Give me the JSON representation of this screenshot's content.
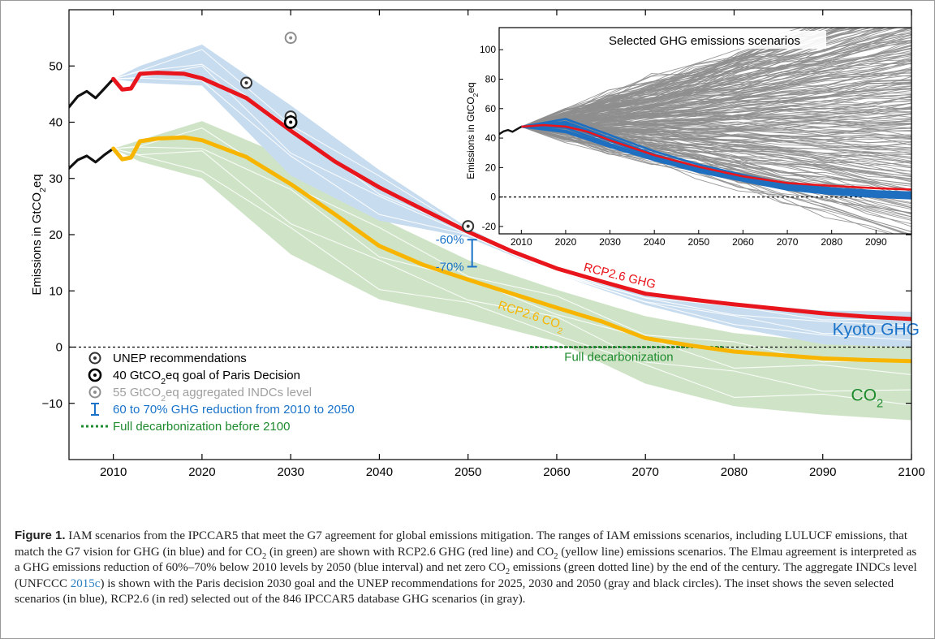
{
  "figure": {
    "caption_label": "Figure 1.",
    "caption_parts": [
      " IAM scenarios from the IPCCAR5 that meet the G7 agreement for global emissions mitigation. The ranges of IAM emissions scenarios, including LULUCF emissions, that match the G7 vision for GHG (in blue) and for CO",
      "2",
      " (in green) are shown with RCP2.6 GHG (red line) and CO",
      "2",
      " (yellow line) emissions scenarios. The Elmau agreement is interpreted as a GHG emissions reduction of 60%–70% below 2010 levels by 2050 (blue interval) and net zero CO",
      "2",
      " emissions (green dotted line) by the end of the century. The aggregate INDCs level (UNFCCC ",
      "2015c",
      ") is shown with the Paris decision 2030 goal and the UNEP recommendations for 2025, 2030 and 2050 (gray and black circles). The inset shows the seven selected scenarios (in blue), RCP2.6 (in red) selected out of the 846 IPCCAR5 database GHG scenarios (in gray)."
    ]
  },
  "colors": {
    "ghg_band": "#c7dcef",
    "co2_band": "#cfe4c7",
    "rcp26_ghg": "#e8161c",
    "rcp26_co2": "#f7b500",
    "historical": "#111111",
    "blue_text": "#1a73c9",
    "green_text": "#1e8a2e",
    "gray_text": "#a0a0a0",
    "inset_gray": "#8e8e8e",
    "inset_blue": "#1f6fc0"
  },
  "chart_data": [
    {
      "type": "line",
      "ylabel_main": "Emissions in GtCO",
      "ylabel_sub": "2",
      "ylabel_end": "eq",
      "xlim": [
        2005,
        2100
      ],
      "ylim": [
        -20,
        60
      ],
      "xticks": [
        "2010",
        "2020",
        "2030",
        "2040",
        "2050",
        "2060",
        "2070",
        "2080",
        "2090",
        "2100"
      ],
      "xtick_values": [
        2010,
        2020,
        2030,
        2040,
        2050,
        2060,
        2070,
        2080,
        2090,
        2100
      ],
      "yticks": [
        "−10",
        "0",
        "10",
        "20",
        "30",
        "40",
        "50"
      ],
      "ytick_values": [
        -10,
        0,
        10,
        20,
        30,
        40,
        50
      ],
      "series": [
        {
          "name": "RCP2.6 GHG",
          "x": [
            2010,
            2011,
            2012,
            2013,
            2015,
            2018,
            2020,
            2025,
            2030,
            2035,
            2040,
            2045,
            2050,
            2055,
            2060,
            2065,
            2070,
            2075,
            2080,
            2085,
            2090,
            2095,
            2100
          ],
          "y": [
            47.7,
            45.8,
            46.0,
            48.6,
            48.8,
            48.6,
            47.8,
            44.3,
            38.5,
            33.0,
            28.4,
            24.4,
            20.5,
            17.0,
            14.0,
            11.7,
            9.5,
            8.5,
            7.6,
            6.8,
            6.0,
            5.4,
            5.0
          ],
          "label_x": 2067,
          "label_y": 12.0
        },
        {
          "name": "RCP2.6 CO2",
          "label_base": "RCP2.6 CO",
          "label_sub": "2",
          "x": [
            2010,
            2011,
            2012,
            2013,
            2015,
            2018,
            2020,
            2025,
            2030,
            2035,
            2040,
            2045,
            2050,
            2055,
            2060,
            2065,
            2070,
            2075,
            2080,
            2085,
            2090,
            2095,
            2100
          ],
          "y": [
            35.3,
            33.4,
            33.7,
            36.6,
            37.1,
            37.3,
            36.8,
            33.8,
            29.0,
            23.6,
            18.0,
            14.6,
            12.0,
            9.5,
            7.0,
            4.6,
            1.6,
            0.3,
            -0.8,
            -1.4,
            -2.0,
            -2.3,
            -2.5
          ],
          "label_x": 2057,
          "label_y": 5.0
        }
      ],
      "historical": [
        {
          "x": [
            2005,
            2006,
            2007,
            2008,
            2009,
            2010
          ],
          "y": [
            42.7,
            44.6,
            45.5,
            44.3,
            46.0,
            47.7
          ]
        },
        {
          "x": [
            2005,
            2006,
            2007,
            2008,
            2009,
            2010
          ],
          "y": [
            31.8,
            33.3,
            34.0,
            32.9,
            34.2,
            35.3
          ]
        }
      ],
      "ghg_band": {
        "x": [
          2010,
          2013,
          2020,
          2030,
          2040,
          2050,
          2060,
          2070,
          2080,
          2090,
          2100
        ],
        "upper": [
          47.7,
          50,
          53.8,
          43,
          31.5,
          21.2,
          13.2,
          9.3,
          7.8,
          6.5,
          6.3
        ],
        "lower": [
          47.7,
          47,
          46.5,
          30.5,
          22.5,
          19.5,
          13,
          7.5,
          3.5,
          0.5,
          0
        ]
      },
      "co2_band": {
        "x": [
          2010,
          2013,
          2020,
          2030,
          2040,
          2050,
          2060,
          2070,
          2080,
          2090,
          2100
        ],
        "upper": [
          35.3,
          36.8,
          40.2,
          33.5,
          23,
          15.5,
          10.2,
          5.5,
          2.5,
          1.0,
          0.5
        ],
        "lower": [
          35.3,
          33,
          30,
          16.5,
          8.5,
          5,
          1,
          -6.5,
          -10.5,
          -12,
          -13
        ]
      },
      "band_labels": [
        {
          "text": "Kyoto GHG",
          "x": 2096,
          "y": 2.2
        },
        {
          "text": "CO",
          "sub": "2",
          "x": 2095,
          "y": -9.5
        }
      ],
      "markers": [
        {
          "kind": "unep",
          "x": 2025,
          "y": 47
        },
        {
          "kind": "unep",
          "x": 2030,
          "y": 41
        },
        {
          "kind": "unep",
          "x": 2050,
          "y": 21.5
        },
        {
          "kind": "paris",
          "x": 2030,
          "y": 40
        },
        {
          "kind": "indc",
          "x": 2030,
          "y": 55
        }
      ],
      "reduction_interval": {
        "x": 2050,
        "y_top": 19.1,
        "y_bottom": 14.3,
        "label_top": "-60%",
        "label_bottom": "-70%"
      },
      "zero_line": {
        "x_from": 2005,
        "x_to": 2100,
        "y": 0
      },
      "decarbonization": {
        "x_from": 2057,
        "x_to": 2079,
        "label": "Full decarbonization",
        "label_x": 2067,
        "label_y": -1.0
      },
      "legend": [
        {
          "kind": "unep",
          "text": "UNEP recommendations"
        },
        {
          "kind": "paris",
          "text": "40 GtCO",
          "sub": "2",
          "tail": "eq goal of Paris Decision"
        },
        {
          "kind": "indc",
          "text": "55 GtCO",
          "sub": "2",
          "tail": "eq aggregated INDCs level"
        },
        {
          "kind": "interval",
          "text": "60 to 70% GHG reduction from 2010 to 2050"
        },
        {
          "kind": "dotted",
          "text": "Full decarbonization before 2100"
        }
      ]
    },
    {
      "type": "line",
      "title": "Selected GHG emissions scenarios",
      "ylabel_main": "Emissions in GtCO",
      "ylabel_sub": "2",
      "ylabel_end": "eq",
      "xlim": [
        2005,
        2098
      ],
      "ylim": [
        -25,
        115
      ],
      "xticks": [
        "2010",
        "2020",
        "2030",
        "2040",
        "2050",
        "2060",
        "2070",
        "2080",
        "2090"
      ],
      "xtick_values": [
        2010,
        2020,
        2030,
        2040,
        2050,
        2060,
        2070,
        2080,
        2090
      ],
      "yticks": [
        "-20",
        "0",
        "20",
        "40",
        "60",
        "80",
        "100"
      ],
      "ytick_values": [
        -20,
        0,
        20,
        40,
        60,
        80,
        100
      ],
      "historical": {
        "x": [
          2005,
          2006,
          2007,
          2008,
          2009,
          2010
        ],
        "y": [
          42.7,
          44.6,
          45.5,
          44.3,
          46.0,
          47.7
        ]
      },
      "gray_scenario_count": 846,
      "gray_envelope": {
        "x_start": 2010,
        "y_start": 47.7,
        "x_end": 2098,
        "upper_end": 140,
        "lower_end": -30
      },
      "selected_scenarios": [
        {
          "x": [
            2010,
            2020,
            2030,
            2040,
            2050,
            2060,
            2070,
            2080,
            2090,
            2098
          ],
          "y": [
            47.7,
            53,
            42,
            31,
            22,
            15,
            9,
            5,
            3,
            2
          ]
        },
        {
          "x": [
            2010,
            2020,
            2030,
            2040,
            2050,
            2060,
            2070,
            2080,
            2090,
            2098
          ],
          "y": [
            47.7,
            51,
            40,
            29,
            20,
            13,
            7,
            4,
            2,
            1
          ]
        },
        {
          "x": [
            2010,
            2020,
            2030,
            2040,
            2050,
            2060,
            2070,
            2080,
            2090,
            2098
          ],
          "y": [
            47.7,
            49,
            38,
            27,
            19,
            12,
            6,
            3,
            1,
            0
          ]
        },
        {
          "x": [
            2010,
            2020,
            2030,
            2040,
            2050,
            2060,
            2070,
            2080,
            2090,
            2098
          ],
          "y": [
            47.7,
            47,
            36,
            26,
            18,
            13,
            8,
            5,
            3,
            2
          ]
        },
        {
          "x": [
            2010,
            2020,
            2030,
            2040,
            2050,
            2060,
            2070,
            2080,
            2090,
            2098
          ],
          "y": [
            47.7,
            45,
            35,
            25,
            17,
            11,
            5,
            2,
            0,
            -1
          ]
        },
        {
          "x": [
            2010,
            2020,
            2030,
            2040,
            2050,
            2060,
            2070,
            2080,
            2090,
            2098
          ],
          "y": [
            47.7,
            44,
            34,
            25,
            18,
            12,
            7,
            4,
            2,
            1
          ]
        },
        {
          "x": [
            2010,
            2020,
            2030,
            2040,
            2050,
            2060,
            2070,
            2080,
            2090,
            2098
          ],
          "y": [
            47.7,
            50,
            39,
            28,
            20,
            14,
            9,
            6,
            4,
            3
          ]
        }
      ],
      "rcp26": {
        "x": [
          2010,
          2015,
          2020,
          2025,
          2030,
          2040,
          2050,
          2060,
          2070,
          2080,
          2090,
          2098
        ],
        "y": [
          47.7,
          48.8,
          47.8,
          44.3,
          38.5,
          28.4,
          20.5,
          14.0,
          9.5,
          7.6,
          6.0,
          5.1
        ]
      }
    }
  ]
}
